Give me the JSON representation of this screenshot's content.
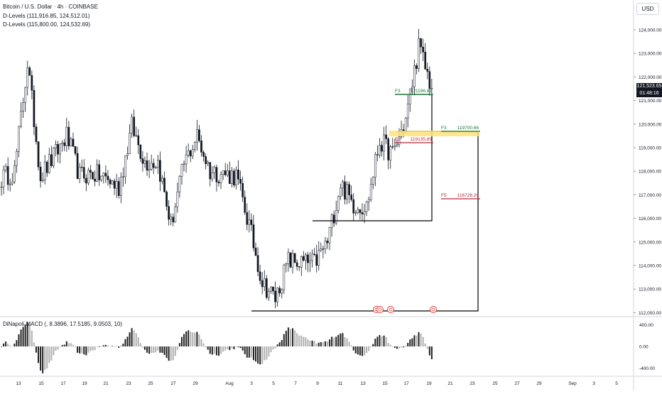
{
  "header": {
    "title": "Bitcoin / U.S. Dollar · 4h · COINBASE",
    "dlevels_1": "D-Levels (111,916.85, 124,512.01)",
    "dlevels_2": "D-Levels (115,800.00, 124,532.69)",
    "macd_label": "DiNapoli MACD (, 8.3896, 17.5185, 9.0503, 10)",
    "currency_button": "USD"
  },
  "last_price": {
    "price": "121,523.65",
    "countdown": "01:48:16"
  },
  "colors": {
    "candle": "#131722",
    "green_level": "#1b7a3a",
    "red_level": "#b2283a",
    "highlight_band": "#ffe37a",
    "target_marker": "#e0403a",
    "macd_dark": "#222222",
    "macd_light": "#b0b0b0"
  },
  "chart_data": [
    {
      "type": "candlestick",
      "title": "Bitcoin / U.S. Dollar · 4h · COINBASE",
      "x_ticks": [
        "13",
        "15",
        "17",
        "19",
        "21",
        "23",
        "25",
        "27",
        "29",
        "Aug",
        "3",
        "5",
        "7",
        "9",
        "11",
        "13",
        "15",
        "17",
        "19",
        "21",
        "23",
        "25",
        "27",
        "29",
        "Sep",
        "3",
        "5"
      ],
      "y_ticks": [
        "124,000.00",
        "123,000.00",
        "122,000.00",
        "121,000.00",
        "120,000.00",
        "119,000.00",
        "118,000.00",
        "117,000.00",
        "116,000.00",
        "115,000.00",
        "114,000.00",
        "113,000.00",
        "112,000.00"
      ],
      "ylim": [
        111800,
        124600
      ],
      "series_close_approx": [
        {
          "date": "Jul 12",
          "close": 117700
        },
        {
          "date": "Jul 13",
          "close": 118000
        },
        {
          "date": "Jul 14",
          "close": 122600
        },
        {
          "date": "Jul 15",
          "close": 117800
        },
        {
          "date": "Jul 16",
          "close": 118600
        },
        {
          "date": "Jul 17",
          "close": 119500
        },
        {
          "date": "Jul 18",
          "close": 117800
        },
        {
          "date": "Jul 19",
          "close": 117900
        },
        {
          "date": "Jul 20",
          "close": 117700
        },
        {
          "date": "Jul 21",
          "close": 117300
        },
        {
          "date": "Jul 22",
          "close": 119900
        },
        {
          "date": "Jul 23",
          "close": 118400
        },
        {
          "date": "Jul 24",
          "close": 118400
        },
        {
          "date": "Jul 25",
          "close": 115700
        },
        {
          "date": "Jul 26",
          "close": 118300
        },
        {
          "date": "Jul 27",
          "close": 119500
        },
        {
          "date": "Jul 28",
          "close": 118000
        },
        {
          "date": "Jul 29",
          "close": 117900
        },
        {
          "date": "Jul 30",
          "close": 117800
        },
        {
          "date": "Jul 31",
          "close": 115700
        },
        {
          "date": "Aug 1",
          "close": 113300
        },
        {
          "date": "Aug 2",
          "close": 112600
        },
        {
          "date": "Aug 3",
          "close": 114200
        },
        {
          "date": "Aug 4",
          "close": 114100
        },
        {
          "date": "Aug 5",
          "close": 114100
        },
        {
          "date": "Aug 6",
          "close": 115000
        },
        {
          "date": "Aug 7",
          "close": 117500
        },
        {
          "date": "Aug 8",
          "close": 116600
        },
        {
          "date": "Aug 9",
          "close": 116500
        },
        {
          "date": "Aug 10",
          "close": 119300
        },
        {
          "date": "Aug 11",
          "close": 118700
        },
        {
          "date": "Aug 12",
          "close": 120200
        },
        {
          "date": "Aug 13",
          "close": 123300
        },
        {
          "date": "Aug 14",
          "close": 121523.65
        }
      ],
      "levels": [
        {
          "label": "F3",
          "value": "121196.81",
          "color": "green"
        },
        {
          "label": "F3",
          "value": "119700.66",
          "color": "green"
        },
        {
          "label": "F5",
          "value": "119135.89",
          "color": "red"
        },
        {
          "label": "F5",
          "value": "116728.20",
          "color": "red"
        }
      ]
    },
    {
      "type": "bar",
      "title": "DiNapoli MACD (, 8.3896, 17.5185, 9.0503, 10)",
      "y_ticks": [
        "400.00",
        "0.00",
        "-400.00"
      ],
      "ylim": [
        -500,
        480
      ]
    }
  ]
}
